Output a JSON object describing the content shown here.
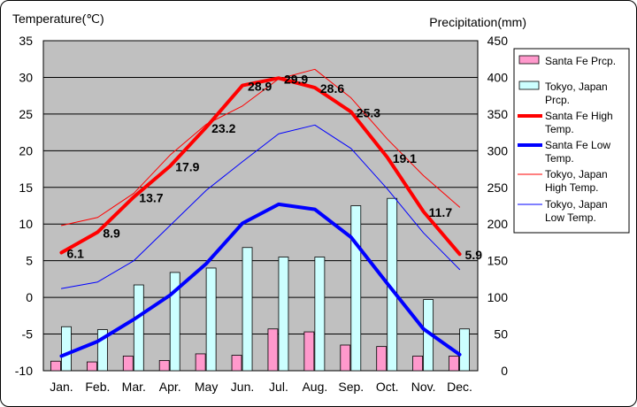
{
  "chart_data": {
    "type": "bar",
    "categories": [
      "Jan.",
      "Feb.",
      "Mar.",
      "Apr.",
      "May",
      "Jun.",
      "Jul.",
      "Aug.",
      "Sep.",
      "Oct.",
      "Nov.",
      "Dec."
    ],
    "y_left": {
      "label": "Temperature(℃)",
      "min": -10,
      "max": 35,
      "ticks": [
        35,
        30,
        25,
        20,
        15,
        10,
        5,
        0,
        -5,
        -10
      ]
    },
    "y_right": {
      "label": "Precipitation(mm)",
      "min": 0,
      "max": 450,
      "ticks": [
        450,
        400,
        350,
        300,
        250,
        200,
        150,
        100,
        50,
        0
      ]
    },
    "grid": true,
    "legend_position": "right",
    "series": [
      {
        "name": "Santa Fe Prcp.",
        "kind": "bar",
        "axis": "right",
        "color": "#ff99cc",
        "values": [
          13,
          12,
          20,
          14,
          23,
          21,
          57,
          53,
          35,
          33,
          20,
          20
        ]
      },
      {
        "name": "Tokyo, Japan Prcp.",
        "kind": "bar",
        "axis": "right",
        "color": "#ccffff",
        "values": [
          60,
          56,
          117,
          134,
          140,
          168,
          155,
          155,
          225,
          235,
          97,
          57
        ]
      },
      {
        "name": "Santa Fe High Temp.",
        "kind": "line",
        "axis": "left",
        "color": "#ff0000",
        "width": 4,
        "values": [
          6.1,
          8.9,
          13.7,
          17.9,
          23.2,
          28.9,
          29.9,
          28.6,
          25.3,
          19.1,
          11.7,
          5.9
        ]
      },
      {
        "name": "Santa Fe Low Temp.",
        "kind": "line",
        "axis": "left",
        "color": "#0000ff",
        "width": 4,
        "values": [
          -8.0,
          -6.0,
          -3.0,
          0.3,
          4.6,
          10.1,
          12.7,
          12.0,
          8.2,
          1.9,
          -4.3,
          -7.8
        ]
      },
      {
        "name": "Tokyo, Japan High Temp.",
        "kind": "line",
        "axis": "left",
        "color": "#ff0000",
        "width": 1,
        "values": [
          9.8,
          10.9,
          14.2,
          19.4,
          23.6,
          26.1,
          29.8,
          31.1,
          27.2,
          21.6,
          16.6,
          12.3
        ]
      },
      {
        "name": "Tokyo, Japan Low Temp.",
        "kind": "line",
        "axis": "left",
        "color": "#0000ff",
        "width": 1,
        "values": [
          1.2,
          2.1,
          5.0,
          9.8,
          14.6,
          18.5,
          22.3,
          23.5,
          20.3,
          14.8,
          8.8,
          3.8
        ]
      }
    ],
    "data_labels": {
      "series": "Santa Fe High Temp.",
      "labels": [
        "6.1",
        "8.9",
        "13.7",
        "17.9",
        "23.2",
        "28.9",
        "29.9",
        "28.6",
        "25.3",
        "19.1",
        "11.7",
        "5.9"
      ]
    },
    "legend": [
      {
        "lines": [
          "Santa Fe Prcp."
        ],
        "kind": "bar",
        "color": "#ff99cc"
      },
      {
        "lines": [
          "Tokyo, Japan",
          "Prcp."
        ],
        "kind": "bar",
        "color": "#ccffff"
      },
      {
        "lines": [
          "Santa Fe High",
          "Temp."
        ],
        "kind": "line",
        "color": "#ff0000",
        "width": 4
      },
      {
        "lines": [
          "Santa Fe Low",
          "Temp."
        ],
        "kind": "line",
        "color": "#0000ff",
        "width": 4
      },
      {
        "lines": [
          "Tokyo, Japan",
          "High Temp."
        ],
        "kind": "line",
        "color": "#ff0000",
        "width": 1
      },
      {
        "lines": [
          "Tokyo, Japan",
          "Low Temp."
        ],
        "kind": "line",
        "color": "#0000ff",
        "width": 1
      }
    ],
    "colors": {
      "plot_bg": "#c0c0c0",
      "grid": "#000000"
    }
  }
}
